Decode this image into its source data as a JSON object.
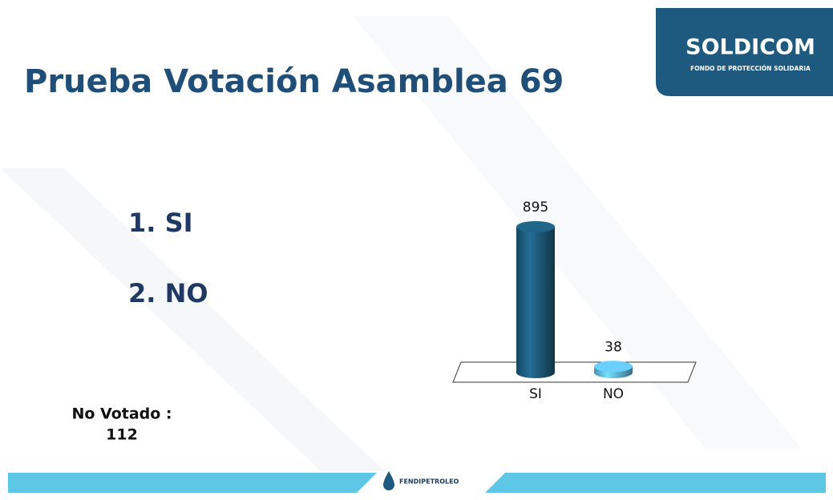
{
  "header": {
    "title": "Prueba Votación Asamblea 69",
    "logo": "SOLDICOM",
    "logo_subtitle": "FONDO DE PROTECCIÓN SOLIDARIA"
  },
  "options": [
    "1. SI",
    "2. NO"
  ],
  "note": {
    "label": "No Votado :",
    "value": "112"
  },
  "footer": {
    "brand": "FENDIPETROLEO"
  },
  "chart_data": {
    "type": "bar3d",
    "categories": [
      "SI",
      "NO"
    ],
    "values": [
      895,
      38
    ],
    "colors": [
      "#1d5878",
      "#5db4dc"
    ]
  }
}
